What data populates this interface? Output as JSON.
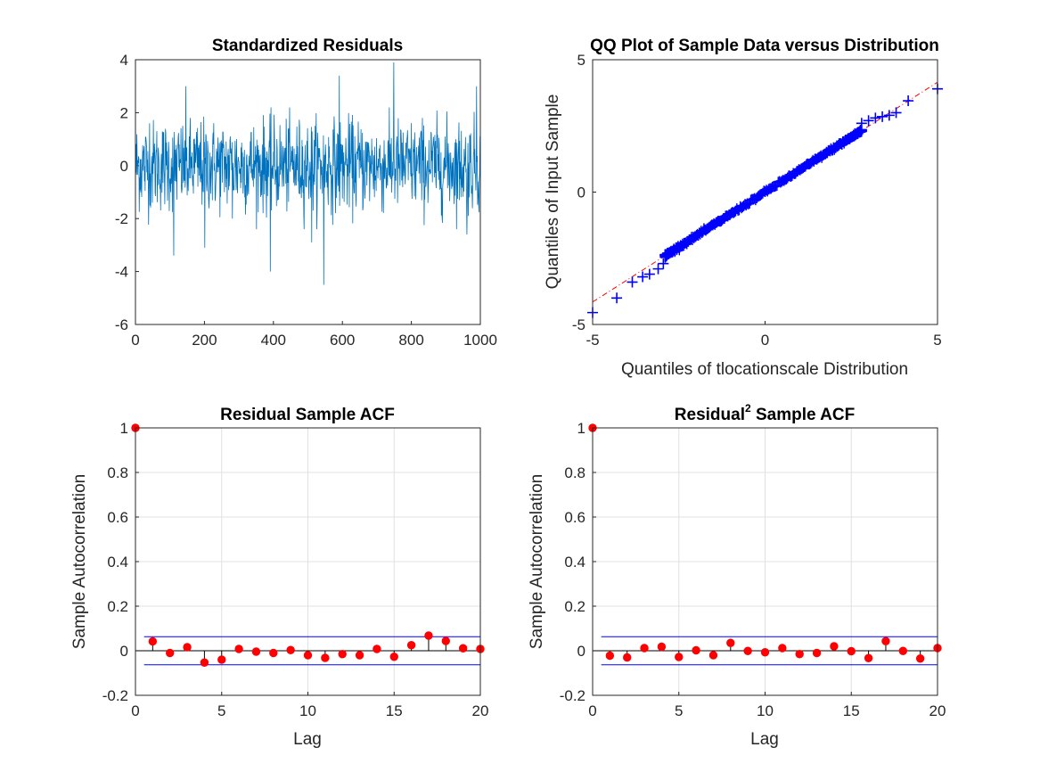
{
  "colors": {
    "residual_line": "#0072BD",
    "qq_marker": "#0000FF",
    "qq_ref_line": "#FF0000",
    "stem_marker": "#FF0000",
    "stem_line": "#FF0000",
    "confidence_bound": "#0000FF",
    "zero_line": "#000000",
    "grid": "#E0E0E0"
  },
  "chart_data": [
    {
      "id": "residuals",
      "type": "line",
      "title": "Standardized Residuals",
      "xlabel": "",
      "ylabel": "",
      "xlim": [
        0,
        1000
      ],
      "ylim": [
        -6,
        4
      ],
      "xticks": [
        0,
        200,
        400,
        600,
        800,
        1000
      ],
      "yticks": [
        -6,
        -4,
        -2,
        0,
        2,
        4
      ],
      "grid": false,
      "n_points": 1000,
      "series": [
        {
          "values_sample": [
            {
              "x": 40,
              "y": 1.6
            },
            {
              "x": 110,
              "y": -3.4
            },
            {
              "x": 145,
              "y": 3.0
            },
            {
              "x": 200,
              "y": -3.1
            },
            {
              "x": 280,
              "y": -2.0
            },
            {
              "x": 390,
              "y": -4.0
            },
            {
              "x": 510,
              "y": -2.9
            },
            {
              "x": 545,
              "y": -4.5
            },
            {
              "x": 590,
              "y": 3.4
            },
            {
              "x": 748,
              "y": 3.9
            },
            {
              "x": 960,
              "y": -2.6
            },
            {
              "x": 988,
              "y": 3.0
            }
          ],
          "typical_range": [
            -1.8,
            1.7
          ]
        }
      ]
    },
    {
      "id": "qqplot",
      "type": "scatter",
      "title": "QQ Plot of Sample Data versus Distribution",
      "xlabel": "Quantiles of tlocationscale Distribution",
      "ylabel": "Quantiles of Input Sample",
      "xlim": [
        -5,
        5
      ],
      "ylim": [
        -5,
        5
      ],
      "xticks": [
        -5,
        0,
        5
      ],
      "yticks": [
        -5,
        0,
        5
      ],
      "grid": false,
      "reference_line": {
        "x": [
          -5,
          5
        ],
        "y": [
          -4.15,
          4.15
        ]
      },
      "tail_points": [
        {
          "x": -5.0,
          "y": -4.55
        },
        {
          "x": -4.3,
          "y": -4.0
        },
        {
          "x": -3.85,
          "y": -3.4
        },
        {
          "x": -3.55,
          "y": -3.2
        },
        {
          "x": -3.35,
          "y": -3.1
        },
        {
          "x": -3.1,
          "y": -2.9
        },
        {
          "x": -2.95,
          "y": -2.7
        },
        {
          "x": 2.8,
          "y": 2.6
        },
        {
          "x": 3.0,
          "y": 2.7
        },
        {
          "x": 3.2,
          "y": 2.8
        },
        {
          "x": 3.4,
          "y": 2.85
        },
        {
          "x": 3.6,
          "y": 2.9
        },
        {
          "x": 3.8,
          "y": 3.0
        },
        {
          "x": 4.15,
          "y": 3.45
        },
        {
          "x": 5.0,
          "y": 3.9
        }
      ],
      "bulk_range": [
        -2.9,
        2.8
      ]
    },
    {
      "id": "acf",
      "type": "stem",
      "title": "Residual Sample ACF",
      "xlabel": "Lag",
      "ylabel": "Sample Autocorrelation",
      "xlim": [
        0,
        20
      ],
      "ylim": [
        -0.2,
        1
      ],
      "xticks": [
        0,
        5,
        10,
        15,
        20
      ],
      "yticks": [
        -0.2,
        0,
        0.2,
        0.4,
        0.6,
        0.8,
        1
      ],
      "grid": true,
      "bounds": [
        0.063,
        -0.063
      ],
      "lags": [
        0,
        1,
        2,
        3,
        4,
        5,
        6,
        7,
        8,
        9,
        10,
        11,
        12,
        13,
        14,
        15,
        16,
        17,
        18,
        19,
        20
      ],
      "values": [
        1,
        0.042,
        -0.01,
        0.016,
        -0.053,
        -0.04,
        0.008,
        -0.004,
        -0.01,
        0.003,
        -0.02,
        -0.032,
        -0.015,
        -0.02,
        0.008,
        -0.027,
        0.025,
        0.068,
        0.044,
        0.011,
        0.008
      ]
    },
    {
      "id": "acf2",
      "type": "stem",
      "title": "Residual",
      "title_sup": "2",
      "title_suffix": " Sample ACF",
      "xlabel": "Lag",
      "ylabel": "Sample Autocorrelation",
      "xlim": [
        0,
        20
      ],
      "ylim": [
        -0.2,
        1
      ],
      "xticks": [
        0,
        5,
        10,
        15,
        20
      ],
      "yticks": [
        -0.2,
        0,
        0.2,
        0.4,
        0.6,
        0.8,
        1
      ],
      "grid": true,
      "bounds": [
        0.063,
        -0.063
      ],
      "lags": [
        0,
        1,
        2,
        3,
        4,
        5,
        6,
        7,
        8,
        9,
        10,
        11,
        12,
        13,
        14,
        15,
        16,
        17,
        18,
        19,
        20
      ],
      "values": [
        1,
        -0.022,
        -0.03,
        0.012,
        0.018,
        -0.028,
        0.002,
        -0.02,
        0.035,
        -0.001,
        -0.007,
        0.012,
        -0.015,
        -0.01,
        0.02,
        -0.002,
        -0.033,
        0.043,
        -0.001,
        -0.035,
        0.012
      ]
    }
  ]
}
